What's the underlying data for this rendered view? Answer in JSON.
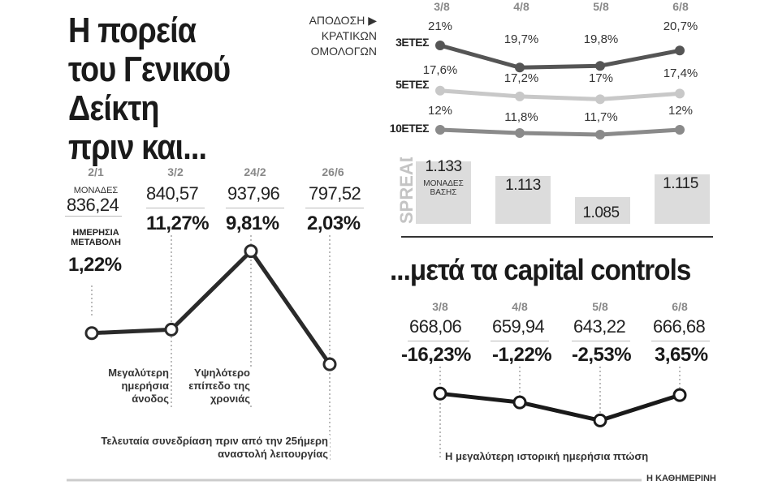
{
  "title": [
    "Η πορεία",
    "του Γενικού",
    "Δείκτη",
    "πριν και..."
  ],
  "title2": "...μετά τα capital controls",
  "units_label": [
    "ΜΟΝΑΔΕΣ"
  ],
  "daily_change_label": [
    "ΗΜΕΡΗΣΙΑ",
    "ΜΕΤΑΒΟΛΗ"
  ],
  "before": {
    "dates": [
      "2/1",
      "3/2",
      "24/2",
      "26/6"
    ],
    "values": [
      "836,24",
      "840,57",
      "937,96",
      "797,52"
    ],
    "changes": [
      "1,22%",
      "11,27%",
      "9,81%",
      "2,03%"
    ]
  },
  "annotations": {
    "a1": [
      "Μεγαλύτερη",
      "ημερήσια",
      "άνοδος"
    ],
    "a2": [
      "Υψηλότερο",
      "επίπεδο της",
      "χρονιάς"
    ],
    "a3": [
      "Τελευταία συνεδρίαση πριν από την 25ήμερη",
      "αναστολή λειτουργίας"
    ],
    "a4": "Η μεγαλύτερη ιστορική ημερήσια πτώση"
  },
  "after": {
    "dates": [
      "3/8",
      "4/8",
      "5/8",
      "6/8"
    ],
    "values": [
      "668,06",
      "659,94",
      "643,22",
      "666,68"
    ],
    "changes": [
      "-16,23%",
      "-1,22%",
      "-2,53%",
      "3,65%"
    ]
  },
  "bonds": {
    "header": [
      "ΑΠΟΔΟΣΗ ▶",
      "ΚΡΑΤΙΚΩΝ",
      "ΟΜΟΛΟΓΩΝ"
    ],
    "dates": [
      "3/8",
      "4/8",
      "5/8",
      "6/8"
    ],
    "rows": [
      {
        "label": "3ΕΤΕΣ",
        "values": [
          "21%",
          "19,7%",
          "19,8%",
          "20,7%"
        ]
      },
      {
        "label": "5ΕΤΕΣ",
        "values": [
          "17,6%",
          "17,2%",
          "17%",
          "17,4%"
        ]
      },
      {
        "label": "10ΕΤΕΣ",
        "values": [
          "12%",
          "11,8%",
          "11,7%",
          "12%"
        ]
      }
    ]
  },
  "spread": {
    "label": "SPREAD",
    "unit": [
      "ΜΟΝΑΔΕΣ",
      "ΒΑΣΗΣ"
    ],
    "values": [
      "1.133",
      "1.113",
      "1.085",
      "1.115"
    ]
  },
  "footer": "Η ΚΑΘΗΜΕΡΙΝΗ",
  "chart_data": [
    {
      "type": "line",
      "title": "Η πορεία του Γενικού Δείκτη πριν και...",
      "x": [
        "2/1",
        "3/2",
        "24/2",
        "26/6"
      ],
      "series": [
        {
          "values": [
            836.24,
            840.57,
            937.96,
            797.52
          ]
        }
      ],
      "changes_pct": [
        1.22,
        11.27,
        9.81,
        2.03
      ],
      "ylim": [
        700,
        1000
      ],
      "grid": false
    },
    {
      "type": "line",
      "title": "...μετά τα capital controls",
      "x": [
        "3/8",
        "4/8",
        "5/8",
        "6/8"
      ],
      "series": [
        {
          "values": [
            668.06,
            659.94,
            643.22,
            666.68
          ]
        }
      ],
      "changes_pct": [
        -16.23,
        -1.22,
        -2.53,
        3.65
      ],
      "ylim": [
        600,
        720
      ],
      "grid": false
    },
    {
      "type": "line",
      "title": "ΑΠΟΔΟΣΗ ΚΡΑΤΙΚΩΝ ΟΜΟΛΟΓΩΝ",
      "x": [
        "3/8",
        "4/8",
        "5/8",
        "6/8"
      ],
      "series": [
        {
          "name": "3ΕΤΕΣ",
          "values": [
            21,
            19.7,
            19.8,
            20.7
          ]
        },
        {
          "name": "5ΕΤΕΣ",
          "values": [
            17.6,
            17.2,
            17,
            17.4
          ]
        },
        {
          "name": "10ΕΤΕΣ",
          "values": [
            12,
            11.8,
            11.7,
            12
          ]
        }
      ],
      "colors": [
        "#555555",
        "#c8c8c8",
        "#8a8a8a"
      ]
    },
    {
      "type": "bar",
      "title": "SPREAD",
      "categories": [
        "3/8",
        "4/8",
        "5/8",
        "6/8"
      ],
      "values": [
        1133,
        1113,
        1085,
        1115
      ],
      "ylabel": "ΜΟΝΑΔΕΣ ΒΑΣΗΣ"
    }
  ]
}
